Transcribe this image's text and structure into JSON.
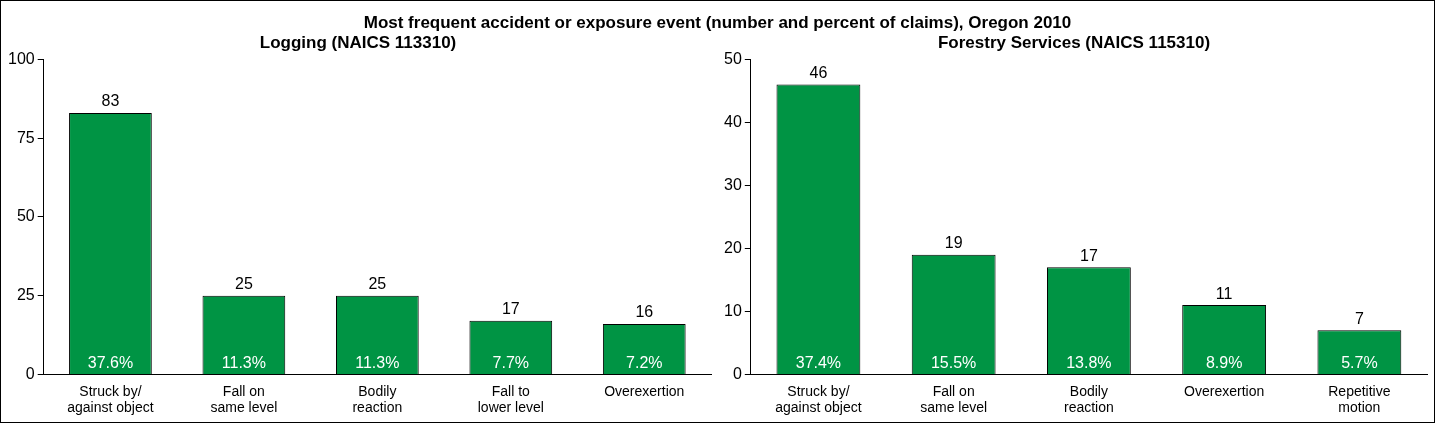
{
  "chart_data": [
    {
      "type": "other",
      "title": "Most frequent accident or exposure event (number and percent of claims), Oregon 2010"
    },
    {
      "type": "bar",
      "title": "Logging (NAICS 113310)",
      "categories": [
        "Struck by/\nagainst object",
        "Fall on\nsame level",
        "Bodily\nreaction",
        "Fall to\nlower level",
        "Overexertion"
      ],
      "values": [
        83,
        25,
        25,
        17,
        16
      ],
      "color": "#009444",
      "ylim": [
        0,
        100
      ],
      "yticks": [
        0,
        25,
        50,
        75,
        100
      ],
      "grid": false,
      "legend": false,
      "data_labels": true,
      "annotations": [
        {
          "text": "37.6%",
          "x": "Struck by/\nagainst object",
          "y": 0
        },
        {
          "text": "11.3%",
          "x": "Fall on\nsame level",
          "y": 0
        },
        {
          "text": "11.3%",
          "x": "Bodily\nreaction",
          "y": 0
        },
        {
          "text": "7.7%",
          "x": "Fall to\nlower level",
          "y": 0
        },
        {
          "text": "7.2%",
          "x": "Overexertion",
          "y": 0
        }
      ]
    },
    {
      "type": "bar",
      "title": "Forestry Services (NAICS 115310)",
      "categories": [
        "Struck by/\nagainst object",
        "Fall on\nsame level",
        "Bodily\nreaction",
        "Overexertion",
        "Repetitive\nmotion"
      ],
      "values": [
        46,
        19,
        17,
        11,
        7
      ],
      "color": "#009444",
      "ylim": [
        0,
        50
      ],
      "yticks": [
        0,
        10,
        20,
        30,
        40,
        50
      ],
      "grid": false,
      "legend": false,
      "data_labels": true,
      "annotations": [
        {
          "text": "37.4%",
          "x": "Struck by/\nagainst object",
          "y": 0
        },
        {
          "text": "15.5%",
          "x": "Fall on\nsame level",
          "y": 0
        },
        {
          "text": "13.8%",
          "x": "Bodily\nreaction",
          "y": 0
        },
        {
          "text": "8.9%",
          "x": "Overexertion",
          "y": 0
        },
        {
          "text": "5.7%",
          "x": "Repetitive\nmotion",
          "y": 0
        }
      ]
    }
  ]
}
